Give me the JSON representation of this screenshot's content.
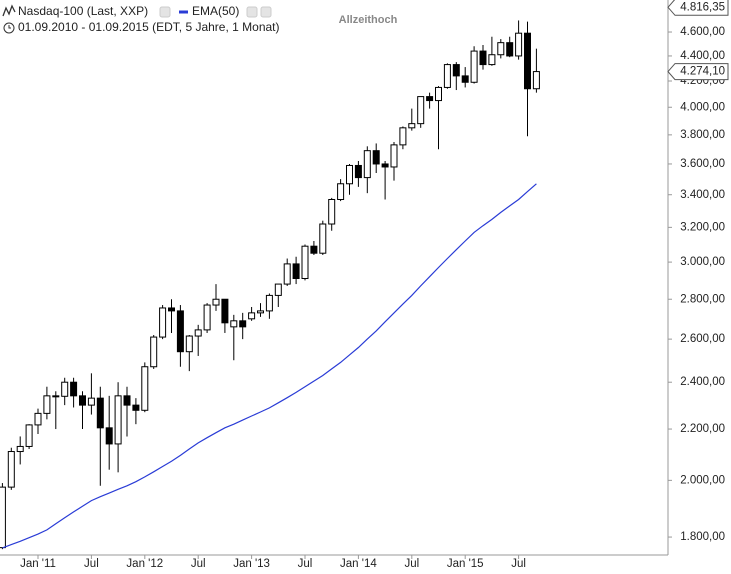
{
  "chart_data": {
    "type": "candlestick",
    "title": "Nasdaq-100 (Last, XXP)",
    "subtitle": "01.09.2010 - 01.09.2015 (EDT, 5 Jahre, 1 Monat)",
    "annotation": "Allzeithoch",
    "log_scale": true,
    "up_color": "#ffffff",
    "down_color": "#000000",
    "categories": [
      null,
      null,
      null,
      null,
      "Jan '11",
      null,
      null,
      null,
      null,
      null,
      "Jul",
      null,
      null,
      null,
      null,
      null,
      "Jan '12",
      null,
      null,
      null,
      null,
      null,
      "Jul",
      null,
      null,
      null,
      null,
      null,
      "Jan '13",
      null,
      null,
      null,
      null,
      null,
      "Jul",
      null,
      null,
      null,
      null,
      null,
      "Jan '14",
      null,
      null,
      null,
      null,
      null,
      "Jul",
      null,
      null,
      null,
      null,
      null,
      "Jan '15",
      null,
      null,
      null,
      null,
      null,
      "Jul",
      null,
      null
    ],
    "open": [
      1765,
      1975,
      2110,
      2130,
      2217,
      2265,
      2340,
      2338,
      2400,
      2340,
      2300,
      2330,
      2205,
      2140,
      2340,
      2300,
      2278,
      2470,
      2610,
      2755,
      2740,
      2540,
      2615,
      2645,
      2770,
      2800,
      2660,
      2690,
      2700,
      2730,
      2740,
      2820,
      2880,
      2990,
      2910,
      3090,
      3050,
      3220,
      3370,
      3470,
      3590,
      3510,
      3690,
      3600,
      3580,
      3730,
      3850,
      3880,
      4080,
      4050,
      4150,
      4330,
      4240,
      4190,
      4440,
      4330,
      4410,
      4510,
      4400,
      4590,
      4140
    ],
    "high": [
      1990,
      2125,
      2170,
      2220,
      2285,
      2380,
      2360,
      2420,
      2420,
      2360,
      2440,
      2380,
      2340,
      2400,
      2380,
      2330,
      2490,
      2620,
      2770,
      2800,
      2770,
      2620,
      2670,
      2780,
      2880,
      2800,
      2720,
      2730,
      2760,
      2780,
      2830,
      2880,
      3020,
      3030,
      3100,
      3120,
      3240,
      3380,
      3500,
      3600,
      3620,
      3720,
      3740,
      3620,
      3750,
      3860,
      3990,
      4080,
      4110,
      4160,
      4340,
      4350,
      4310,
      4480,
      4490,
      4560,
      4540,
      4560,
      4700,
      4690,
      4460
    ],
    "low": [
      1760,
      1965,
      2060,
      2120,
      2180,
      2240,
      2200,
      2300,
      2290,
      2200,
      2260,
      1980,
      2040,
      2030,
      2170,
      2220,
      2270,
      2460,
      2600,
      2630,
      2470,
      2450,
      2520,
      2630,
      2740,
      2630,
      2500,
      2600,
      2690,
      2710,
      2700,
      2760,
      2870,
      2880,
      2900,
      3040,
      3040,
      3180,
      3360,
      3400,
      3450,
      3410,
      3540,
      3370,
      3490,
      3700,
      3830,
      3850,
      3990,
      3700,
      4140,
      4130,
      4150,
      4180,
      4290,
      4320,
      4380,
      4390,
      4370,
      3790,
      4110
    ],
    "close": [
      1975,
      2110,
      2130,
      2217,
      2265,
      2340,
      2338,
      2400,
      2340,
      2300,
      2330,
      2205,
      2140,
      2340,
      2300,
      2278,
      2470,
      2610,
      2755,
      2740,
      2540,
      2615,
      2645,
      2770,
      2800,
      2680,
      2690,
      2660,
      2730,
      2740,
      2820,
      2880,
      2990,
      2910,
      3090,
      3050,
      3220,
      3370,
      3470,
      3590,
      3510,
      3690,
      3600,
      3580,
      3730,
      3850,
      3880,
      4080,
      4050,
      4150,
      4330,
      4240,
      4190,
      4440,
      4330,
      4410,
      4510,
      4400,
      4590,
      4140,
      4274.1
    ],
    "series": [
      {
        "name": "EMA(50)",
        "color": "#2a3cd6",
        "values": [
          1764,
          1775,
          1786,
          1798,
          1810,
          1824,
          1845,
          1866,
          1886,
          1906,
          1926,
          1940,
          1953,
          1967,
          1980,
          1995,
          2013,
          2032,
          2052,
          2072,
          2095,
          2120,
          2144,
          2165,
          2185,
          2205,
          2220,
          2237,
          2254,
          2271,
          2288,
          2310,
          2332,
          2355,
          2380,
          2405,
          2430,
          2460,
          2490,
          2525,
          2560,
          2600,
          2640,
          2685,
          2730,
          2775,
          2820,
          2870,
          2920,
          2970,
          3020,
          3070,
          3120,
          3170,
          3210,
          3248,
          3290,
          3330,
          3370,
          3420,
          3470
        ]
      }
    ],
    "markers": [
      {
        "value": 4816.35,
        "label": "4.816,35"
      },
      {
        "value": 4274.1,
        "label": "4.274,10"
      }
    ],
    "ylim": [
      1741,
      4882
    ],
    "yticks": [
      {
        "value": 1800,
        "label": "1.800,00"
      },
      {
        "value": 2000,
        "label": "2.000,00"
      },
      {
        "value": 2200,
        "label": "2.200,00"
      },
      {
        "value": 2400,
        "label": "2.400,00"
      },
      {
        "value": 2600,
        "label": "2.600,00"
      },
      {
        "value": 2800,
        "label": "2.800,00"
      },
      {
        "value": 3000,
        "label": "3.000,00"
      },
      {
        "value": 3200,
        "label": "3.200,00"
      },
      {
        "value": 3400,
        "label": "3.400,00"
      },
      {
        "value": 3600,
        "label": "3.600,00"
      },
      {
        "value": 3800,
        "label": "3.800,00"
      },
      {
        "value": 4000,
        "label": "4.000,00"
      },
      {
        "value": 4200,
        "label": "4.200,00"
      },
      {
        "value": 4400,
        "label": "4.400,00"
      },
      {
        "value": 4600,
        "label": "4.600,00"
      }
    ]
  }
}
